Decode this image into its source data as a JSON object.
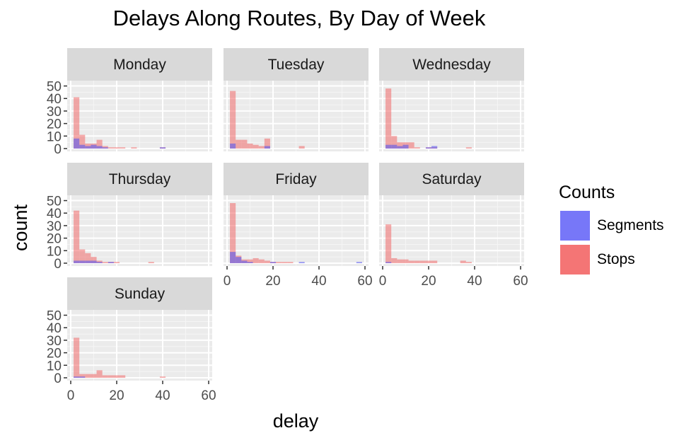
{
  "chart_data": {
    "type": "bar",
    "title": "Delays Along Routes, By Day of Week",
    "xlabel": "delay",
    "ylabel": "count",
    "xlim": [
      0,
      60
    ],
    "ylim": [
      0,
      52
    ],
    "x_ticks": [
      0,
      20,
      40,
      60
    ],
    "y_ticks": [
      0,
      10,
      20,
      30,
      40,
      50
    ],
    "bin_width": 2.5,
    "grid": true,
    "legend": {
      "title": "Counts",
      "position": "right",
      "entries": [
        {
          "name": "Segments",
          "color": "#7777ff"
        },
        {
          "name": "Stops",
          "color": "#f8766d"
        }
      ]
    },
    "panels": [
      {
        "label": "Monday",
        "series": [
          {
            "name": "Stops",
            "bins": [
              [
                2.5,
                41
              ],
              [
                5,
                11
              ],
              [
                7.5,
                4
              ],
              [
                10,
                4
              ],
              [
                12.5,
                7
              ],
              [
                15,
                2
              ],
              [
                17.5,
                1
              ],
              [
                20,
                1
              ],
              [
                22.5,
                1
              ],
              [
                27.5,
                1
              ],
              [
                40,
                1
              ]
            ]
          },
          {
            "name": "Segments",
            "bins": [
              [
                2.5,
                8
              ],
              [
                5,
                3
              ],
              [
                7.5,
                2
              ],
              [
                10,
                3
              ],
              [
                12.5,
                2
              ],
              [
                15,
                1
              ],
              [
                40,
                1
              ]
            ]
          }
        ]
      },
      {
        "label": "Tuesday",
        "series": [
          {
            "name": "Stops",
            "bins": [
              [
                2.5,
                46
              ],
              [
                5,
                7
              ],
              [
                7.5,
                7
              ],
              [
                10,
                4
              ],
              [
                12.5,
                3
              ],
              [
                15,
                2
              ],
              [
                17.5,
                8
              ],
              [
                32.5,
                2
              ]
            ]
          },
          {
            "name": "Segments",
            "bins": [
              [
                2.5,
                4
              ],
              [
                17.5,
                2
              ]
            ]
          }
        ]
      },
      {
        "label": "Wednesday",
        "series": [
          {
            "name": "Stops",
            "bins": [
              [
                2.5,
                48
              ],
              [
                5,
                10
              ],
              [
                7.5,
                5
              ],
              [
                10,
                5
              ],
              [
                12.5,
                5
              ],
              [
                15,
                1
              ],
              [
                20,
                1
              ],
              [
                22.5,
                1
              ],
              [
                37.5,
                1
              ]
            ]
          },
          {
            "name": "Segments",
            "bins": [
              [
                2.5,
                3
              ],
              [
                5,
                3
              ],
              [
                7.5,
                2
              ],
              [
                10,
                3
              ],
              [
                20,
                1
              ],
              [
                22.5,
                2
              ]
            ]
          }
        ]
      },
      {
        "label": "Thursday",
        "series": [
          {
            "name": "Stops",
            "bins": [
              [
                2.5,
                42
              ],
              [
                5,
                11
              ],
              [
                7.5,
                8
              ],
              [
                10,
                5
              ],
              [
                12.5,
                2
              ],
              [
                15,
                1
              ],
              [
                17.5,
                1
              ],
              [
                20,
                1
              ],
              [
                35,
                1
              ]
            ]
          },
          {
            "name": "Segments",
            "bins": [
              [
                2.5,
                2
              ],
              [
                5,
                2
              ],
              [
                7.5,
                2
              ],
              [
                10,
                2
              ],
              [
                12.5,
                1
              ],
              [
                17.5,
                1
              ]
            ]
          }
        ]
      },
      {
        "label": "Friday",
        "series": [
          {
            "name": "Stops",
            "bins": [
              [
                2.5,
                48
              ],
              [
                5,
                6
              ],
              [
                7.5,
                3
              ],
              [
                10,
                3
              ],
              [
                12.5,
                4
              ],
              [
                15,
                3
              ],
              [
                17.5,
                2
              ],
              [
                20,
                1
              ],
              [
                22.5,
                1
              ],
              [
                25,
                1
              ],
              [
                27.5,
                1
              ]
            ]
          },
          {
            "name": "Segments",
            "bins": [
              [
                2.5,
                9
              ],
              [
                5,
                5
              ],
              [
                7.5,
                2
              ],
              [
                10,
                1
              ],
              [
                20,
                1
              ],
              [
                32.5,
                1
              ],
              [
                57.5,
                1
              ]
            ]
          }
        ]
      },
      {
        "label": "Saturday",
        "series": [
          {
            "name": "Stops",
            "bins": [
              [
                2.5,
                31
              ],
              [
                5,
                4
              ],
              [
                7.5,
                3
              ],
              [
                10,
                3
              ],
              [
                12.5,
                2
              ],
              [
                15,
                2
              ],
              [
                17.5,
                2
              ],
              [
                20,
                2
              ],
              [
                22.5,
                2
              ],
              [
                35,
                2
              ],
              [
                37.5,
                1
              ]
            ]
          },
          {
            "name": "Segments",
            "bins": [
              [
                2.5,
                1
              ]
            ]
          }
        ]
      },
      {
        "label": "Sunday",
        "series": [
          {
            "name": "Stops",
            "bins": [
              [
                2.5,
                32
              ],
              [
                5,
                3
              ],
              [
                7.5,
                3
              ],
              [
                10,
                3
              ],
              [
                12.5,
                6
              ],
              [
                15,
                2
              ],
              [
                17.5,
                2
              ],
              [
                20,
                2
              ],
              [
                22.5,
                2
              ],
              [
                40,
                1
              ]
            ]
          },
          {
            "name": "Segments",
            "bins": [
              [
                2.5,
                1
              ],
              [
                5,
                1
              ]
            ]
          }
        ]
      }
    ]
  }
}
